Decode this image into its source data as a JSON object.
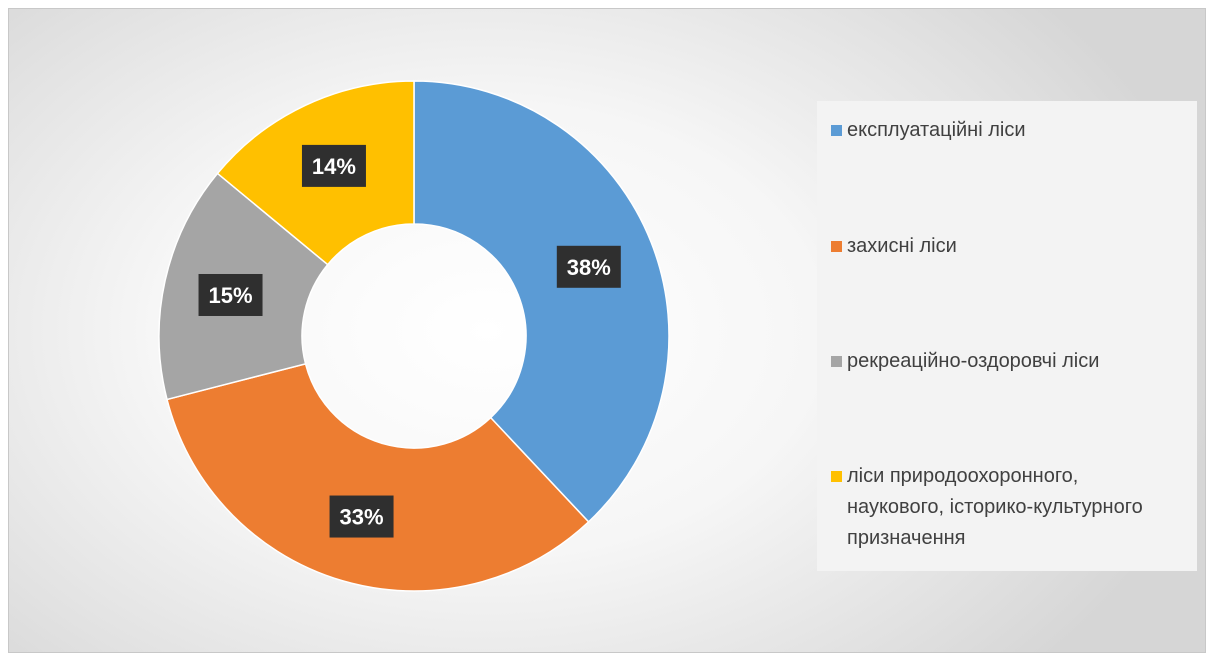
{
  "chart_data": {
    "type": "pie",
    "variant": "donut",
    "categories": [
      "експлуатаційні ліси",
      "захисні ліси",
      "рекреаційно-оздоровчі ліси",
      "ліси природоохоронного,\nнаукового, історико-культурного\nпризначення"
    ],
    "values": [
      38,
      33,
      15,
      14
    ],
    "value_labels": [
      "38%",
      "33%",
      "15%",
      "14%"
    ],
    "colors": [
      "#5b9bd5",
      "#ed7d31",
      "#a5a5a5",
      "#ffc000"
    ],
    "legend_position": "right",
    "title": ""
  }
}
